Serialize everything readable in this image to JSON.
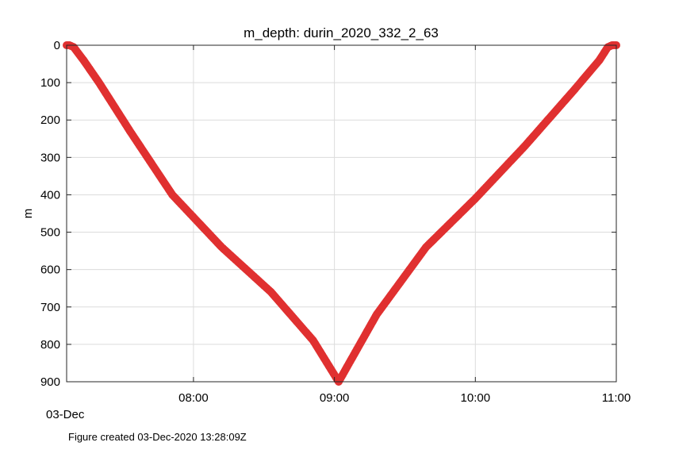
{
  "chart_data": {
    "type": "scatter",
    "title": "m_depth: durin_2020_332_2_63",
    "xlabel": "",
    "ylabel": "m",
    "date_label": "03-Dec",
    "footer": "Figure created 03-Dec-2020 13:28:09Z",
    "x_tick_labels": [
      "08:00",
      "09:00",
      "10:00",
      "11:00"
    ],
    "x_tick_hours": [
      8,
      9,
      10,
      11
    ],
    "xlim_hours": [
      7.1,
      11.0
    ],
    "y_tick_labels": [
      "0",
      "100",
      "200",
      "300",
      "400",
      "500",
      "600",
      "700",
      "800",
      "900"
    ],
    "y_tick_values": [
      0,
      100,
      200,
      300,
      400,
      500,
      600,
      700,
      800,
      900
    ],
    "ylim": [
      0,
      900
    ],
    "y_reversed": true,
    "grid": true,
    "marker_color": "#e03030",
    "series": [
      {
        "x_hours": [
          7.1,
          7.12,
          7.15,
          7.22,
          7.33,
          7.55,
          7.85,
          8.2,
          8.55,
          8.85,
          9.03,
          9.3,
          9.65,
          10.0,
          10.35,
          10.7,
          10.88,
          10.94,
          10.97,
          11.0
        ],
        "depth_m": [
          0,
          0,
          5,
          40,
          100,
          230,
          400,
          540,
          660,
          790,
          900,
          720,
          540,
          410,
          270,
          120,
          40,
          5,
          0,
          0
        ]
      }
    ]
  }
}
